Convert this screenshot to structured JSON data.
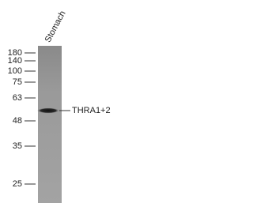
{
  "lane_label": "Stomach",
  "markers": [
    "180",
    "140",
    "100",
    "75",
    "63",
    "48",
    "35",
    "25"
  ],
  "band_label": "THRA1+2"
}
